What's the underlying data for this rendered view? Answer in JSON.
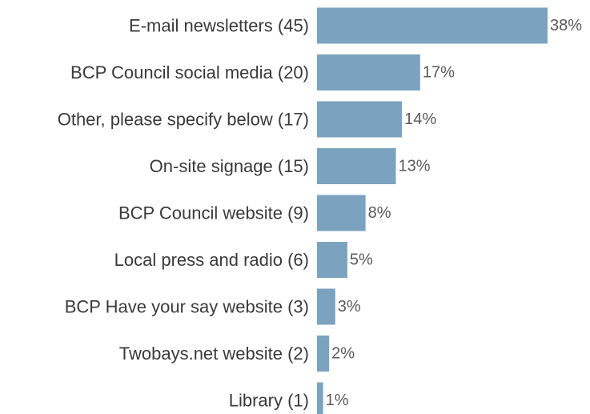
{
  "chart_data": {
    "type": "bar",
    "orientation": "horizontal",
    "categories": [
      "E-mail newsletters (45)",
      "BCP Council social media (20)",
      "Other, please specify below (17)",
      "On-site signage (15)",
      "BCP Council website (9)",
      "Local press and radio (6)",
      "BCP Have your say website (3)",
      "Twobays.net website (2)",
      "Library (1)"
    ],
    "values": [
      38,
      17,
      14,
      13,
      8,
      5,
      3,
      2,
      1
    ],
    "value_labels": [
      "38%",
      "17%",
      "14%",
      "13%",
      "8%",
      "5%",
      "3%",
      "2%",
      "1%"
    ],
    "title": "",
    "xlabel": "",
    "ylabel": "",
    "xlim": [
      0,
      38
    ],
    "grid": false,
    "legend": "none",
    "bar_color": "#7ba3c0"
  }
}
